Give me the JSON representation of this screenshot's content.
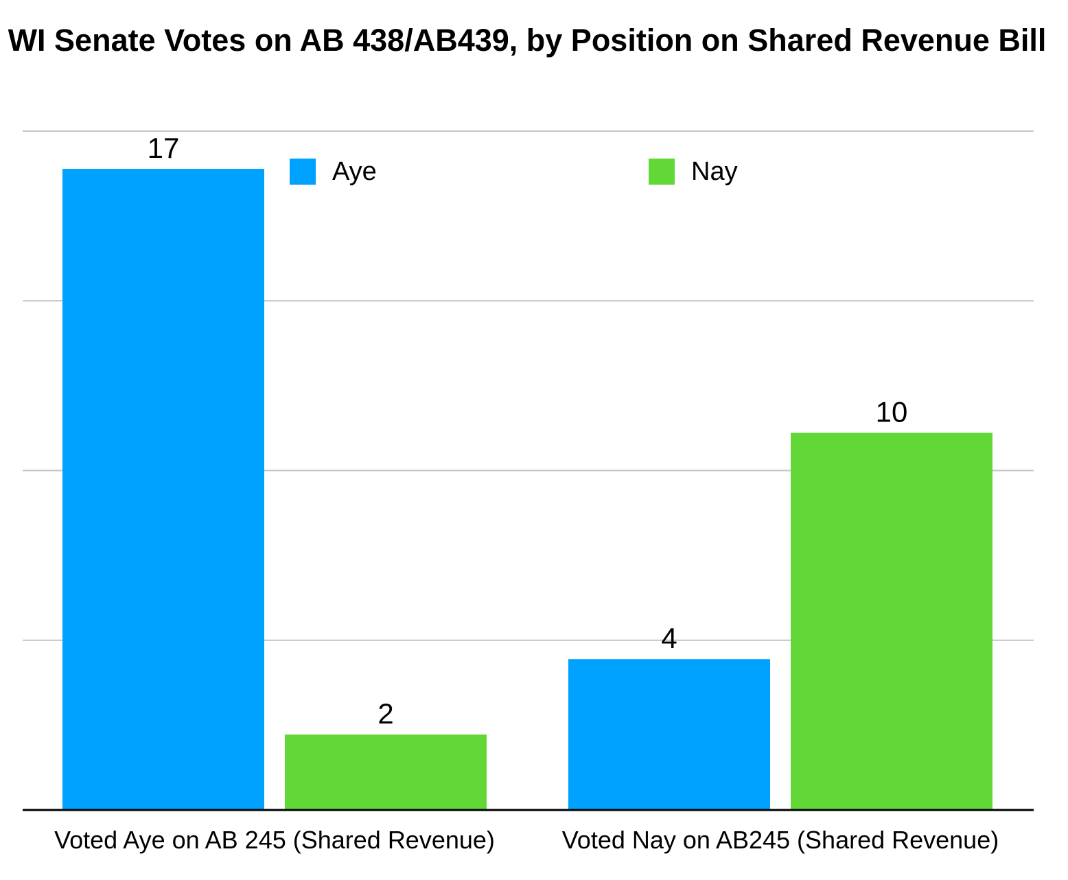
{
  "chart_data": {
    "type": "bar",
    "title": "WI Senate Votes on AB 438/AB439, by Position on Shared Revenue Bill",
    "xlabel": "",
    "ylabel": "",
    "categories": [
      "Voted Aye on AB 245 (Shared Revenue)",
      "Voted Nay on AB245 (Shared Revenue)"
    ],
    "series": [
      {
        "name": "Aye",
        "color": "#00A2FF",
        "values": [
          17,
          4
        ]
      },
      {
        "name": "Nay",
        "color": "#61D836",
        "values": [
          2,
          10
        ]
      }
    ],
    "ylim": [
      0,
      18
    ],
    "gridlines": [
      4.5,
      9,
      13.5,
      18
    ],
    "grid": true,
    "show_y_tick_labels": false,
    "data_labels": true,
    "legend": "top"
  }
}
